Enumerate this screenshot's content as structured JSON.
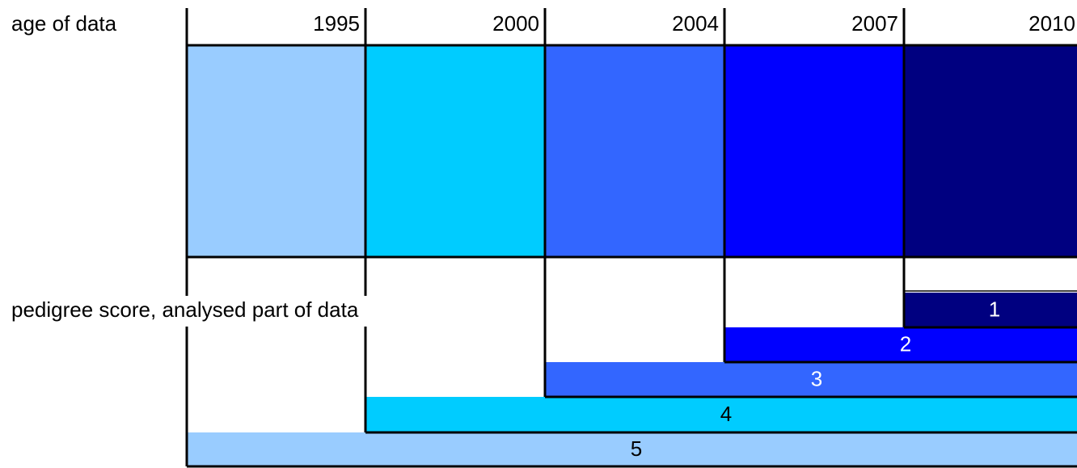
{
  "labels": {
    "age": "age of data",
    "pedigree": "pedigree score, analysed part of data"
  },
  "years": [
    "1995",
    "2000",
    "2004",
    "2007",
    "2010"
  ],
  "scores": [
    "1",
    "2",
    "3",
    "4",
    "5"
  ]
}
